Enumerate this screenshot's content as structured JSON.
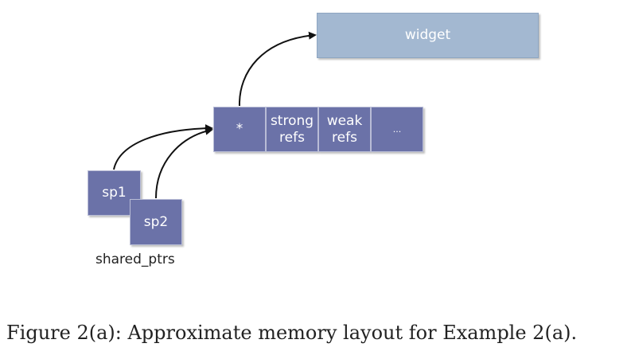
{
  "diagram": {
    "widget_label": "widget",
    "control_block": {
      "pointer_label": "*",
      "strong_label": "strong\nrefs",
      "weak_label": "weak\nrefs",
      "more_label": "..."
    },
    "sp1_label": "sp1",
    "sp2_label": "sp2",
    "group_label": "shared_ptrs"
  },
  "caption": "Figure 2(a): Approximate memory layout for Example 2(a).",
  "colors": {
    "block_fill": "#6b72a8",
    "widget_fill": "#a3b8d1",
    "arrow": "#111111"
  }
}
